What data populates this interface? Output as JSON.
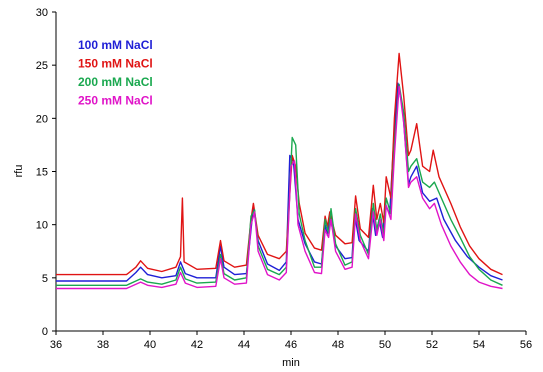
{
  "chart_data": {
    "type": "line",
    "title": "",
    "xlabel": "min",
    "ylabel": "rfu",
    "xlim": [
      36,
      56
    ],
    "ylim": [
      0,
      30
    ],
    "xticks": [
      36,
      38,
      40,
      42,
      44,
      46,
      48,
      50,
      52,
      54,
      56
    ],
    "yticks": [
      0,
      5,
      10,
      15,
      20,
      25,
      30
    ],
    "grid": false,
    "legend_position": "top-left",
    "series": [
      {
        "name": "100 mM NaCl",
        "color": "#1f1fd6",
        "points": [
          [
            36,
            4.7
          ],
          [
            39.0,
            4.7
          ],
          [
            39.4,
            5.5
          ],
          [
            39.6,
            6.0
          ],
          [
            39.9,
            5.3
          ],
          [
            40.5,
            5.0
          ],
          [
            41.1,
            5.2
          ],
          [
            41.3,
            6.5
          ],
          [
            41.5,
            5.4
          ],
          [
            42.0,
            5.0
          ],
          [
            42.8,
            5.0
          ],
          [
            43.0,
            8.0
          ],
          [
            43.15,
            6.0
          ],
          [
            43.6,
            5.3
          ],
          [
            44.1,
            5.4
          ],
          [
            44.3,
            9.5
          ],
          [
            44.4,
            11.8
          ],
          [
            44.6,
            8.5
          ],
          [
            45.0,
            6.3
          ],
          [
            45.5,
            5.7
          ],
          [
            45.8,
            6.5
          ],
          [
            45.95,
            16.5
          ],
          [
            46.1,
            16.0
          ],
          [
            46.3,
            10.5
          ],
          [
            46.6,
            8.2
          ],
          [
            47.0,
            6.5
          ],
          [
            47.3,
            6.3
          ],
          [
            47.45,
            10.0
          ],
          [
            47.55,
            9.0
          ],
          [
            47.65,
            11.0
          ],
          [
            47.9,
            8.0
          ],
          [
            48.3,
            6.8
          ],
          [
            48.6,
            6.9
          ],
          [
            48.7,
            11.0
          ],
          [
            48.9,
            8.5
          ],
          [
            49.3,
            7.5
          ],
          [
            49.45,
            11.5
          ],
          [
            49.6,
            9.0
          ],
          [
            49.75,
            10.5
          ],
          [
            49.9,
            8.8
          ],
          [
            50.0,
            12.0
          ],
          [
            50.2,
            11.0
          ],
          [
            50.35,
            17.0
          ],
          [
            50.55,
            23.3
          ],
          [
            50.75,
            21.0
          ],
          [
            51.0,
            13.8
          ],
          [
            51.1,
            14.5
          ],
          [
            51.35,
            15.5
          ],
          [
            51.6,
            13.0
          ],
          [
            51.9,
            12.2
          ],
          [
            52.2,
            12.5
          ],
          [
            52.5,
            10.5
          ],
          [
            53.0,
            8.5
          ],
          [
            53.5,
            7.0
          ],
          [
            54.0,
            6.0
          ],
          [
            54.5,
            5.2
          ],
          [
            55,
            4.8
          ]
        ]
      },
      {
        "name": "150 mM NaCl",
        "color": "#e01414",
        "points": [
          [
            36,
            5.3
          ],
          [
            39.0,
            5.3
          ],
          [
            39.4,
            6.0
          ],
          [
            39.6,
            6.6
          ],
          [
            39.9,
            5.9
          ],
          [
            40.5,
            5.6
          ],
          [
            41.1,
            6.0
          ],
          [
            41.3,
            7.0
          ],
          [
            41.38,
            12.5
          ],
          [
            41.45,
            6.5
          ],
          [
            42.0,
            5.8
          ],
          [
            42.8,
            5.9
          ],
          [
            43.0,
            8.5
          ],
          [
            43.15,
            6.6
          ],
          [
            43.6,
            6.0
          ],
          [
            44.1,
            6.2
          ],
          [
            44.3,
            10.5
          ],
          [
            44.4,
            12.0
          ],
          [
            44.6,
            9.0
          ],
          [
            45.0,
            7.2
          ],
          [
            45.5,
            6.8
          ],
          [
            45.8,
            7.5
          ],
          [
            46.05,
            16.5
          ],
          [
            46.2,
            15.5
          ],
          [
            46.35,
            12.0
          ],
          [
            46.6,
            9.2
          ],
          [
            47.0,
            7.8
          ],
          [
            47.3,
            7.6
          ],
          [
            47.45,
            10.8
          ],
          [
            47.55,
            9.8
          ],
          [
            47.65,
            11.2
          ],
          [
            47.9,
            9.0
          ],
          [
            48.3,
            8.2
          ],
          [
            48.6,
            8.3
          ],
          [
            48.75,
            12.7
          ],
          [
            48.95,
            9.6
          ],
          [
            49.3,
            8.8
          ],
          [
            49.5,
            13.7
          ],
          [
            49.65,
            10.5
          ],
          [
            49.8,
            12.0
          ],
          [
            49.95,
            10.2
          ],
          [
            50.05,
            14.5
          ],
          [
            50.25,
            12.5
          ],
          [
            50.4,
            20.0
          ],
          [
            50.6,
            26.1
          ],
          [
            50.8,
            22.0
          ],
          [
            51.0,
            16.5
          ],
          [
            51.1,
            17.0
          ],
          [
            51.35,
            19.5
          ],
          [
            51.6,
            15.5
          ],
          [
            51.9,
            15.0
          ],
          [
            52.05,
            17.0
          ],
          [
            52.3,
            14.5
          ],
          [
            52.8,
            12.0
          ],
          [
            53.2,
            9.8
          ],
          [
            53.6,
            8.0
          ],
          [
            54.0,
            6.8
          ],
          [
            54.5,
            5.8
          ],
          [
            55,
            5.3
          ]
        ]
      },
      {
        "name": "200 mM NaCl",
        "color": "#1aa84f",
        "points": [
          [
            36,
            4.3
          ],
          [
            39.0,
            4.3
          ],
          [
            39.4,
            4.7
          ],
          [
            39.6,
            4.9
          ],
          [
            39.9,
            4.6
          ],
          [
            40.5,
            4.4
          ],
          [
            41.1,
            4.8
          ],
          [
            41.3,
            6.0
          ],
          [
            41.5,
            4.9
          ],
          [
            42.0,
            4.5
          ],
          [
            42.8,
            4.6
          ],
          [
            43.0,
            7.2
          ],
          [
            43.15,
            5.4
          ],
          [
            43.6,
            4.8
          ],
          [
            44.1,
            5.0
          ],
          [
            44.3,
            10.8
          ],
          [
            44.45,
            11.4
          ],
          [
            44.6,
            8.0
          ],
          [
            45.0,
            5.8
          ],
          [
            45.5,
            5.3
          ],
          [
            45.8,
            6.0
          ],
          [
            46.05,
            18.2
          ],
          [
            46.2,
            17.5
          ],
          [
            46.35,
            11.0
          ],
          [
            46.6,
            8.5
          ],
          [
            47.0,
            6.0
          ],
          [
            47.3,
            6.0
          ],
          [
            47.45,
            10.5
          ],
          [
            47.6,
            9.2
          ],
          [
            47.7,
            11.5
          ],
          [
            47.9,
            8.2
          ],
          [
            48.3,
            6.2
          ],
          [
            48.6,
            6.5
          ],
          [
            48.75,
            11.5
          ],
          [
            48.95,
            9.0
          ],
          [
            49.3,
            7.2
          ],
          [
            49.5,
            12.0
          ],
          [
            49.65,
            9.5
          ],
          [
            49.8,
            11.0
          ],
          [
            49.95,
            9.0
          ],
          [
            50.05,
            12.5
          ],
          [
            50.25,
            11.0
          ],
          [
            50.4,
            17.5
          ],
          [
            50.6,
            23.2
          ],
          [
            50.8,
            20.5
          ],
          [
            51.0,
            15.0
          ],
          [
            51.1,
            15.5
          ],
          [
            51.35,
            16.2
          ],
          [
            51.6,
            14.0
          ],
          [
            51.9,
            13.5
          ],
          [
            52.1,
            14.0
          ],
          [
            52.4,
            12.5
          ],
          [
            52.8,
            10.5
          ],
          [
            53.2,
            8.8
          ],
          [
            53.6,
            7.0
          ],
          [
            54.0,
            5.8
          ],
          [
            54.5,
            4.8
          ],
          [
            55,
            4.3
          ]
        ]
      },
      {
        "name": "250 mM NaCl",
        "color": "#e014c8",
        "points": [
          [
            36,
            4.0
          ],
          [
            39.0,
            4.0
          ],
          [
            39.4,
            4.4
          ],
          [
            39.6,
            4.6
          ],
          [
            39.9,
            4.3
          ],
          [
            40.5,
            4.1
          ],
          [
            41.1,
            4.4
          ],
          [
            41.3,
            5.5
          ],
          [
            41.5,
            4.5
          ],
          [
            42.0,
            4.1
          ],
          [
            42.8,
            4.2
          ],
          [
            43.0,
            6.8
          ],
          [
            43.15,
            5.0
          ],
          [
            43.6,
            4.4
          ],
          [
            44.1,
            4.5
          ],
          [
            44.3,
            10.0
          ],
          [
            44.45,
            11.2
          ],
          [
            44.6,
            7.5
          ],
          [
            45.0,
            5.3
          ],
          [
            45.5,
            4.8
          ],
          [
            45.8,
            5.5
          ],
          [
            46.0,
            15.5
          ],
          [
            46.15,
            16.0
          ],
          [
            46.3,
            10.0
          ],
          [
            46.6,
            7.5
          ],
          [
            47.0,
            5.5
          ],
          [
            47.3,
            5.4
          ],
          [
            47.45,
            9.5
          ],
          [
            47.6,
            8.8
          ],
          [
            47.7,
            10.5
          ],
          [
            47.9,
            7.5
          ],
          [
            48.3,
            5.8
          ],
          [
            48.6,
            6.0
          ],
          [
            48.75,
            11.0
          ],
          [
            48.95,
            8.5
          ],
          [
            49.3,
            6.8
          ],
          [
            49.5,
            11.2
          ],
          [
            49.65,
            9.0
          ],
          [
            49.8,
            10.5
          ],
          [
            49.95,
            8.5
          ],
          [
            50.05,
            11.8
          ],
          [
            50.25,
            10.5
          ],
          [
            50.4,
            16.5
          ],
          [
            50.6,
            23.0
          ],
          [
            50.8,
            19.5
          ],
          [
            51.0,
            13.5
          ],
          [
            51.1,
            14.0
          ],
          [
            51.35,
            14.5
          ],
          [
            51.6,
            12.5
          ],
          [
            51.9,
            11.5
          ],
          [
            52.1,
            12.0
          ],
          [
            52.4,
            10.0
          ],
          [
            52.8,
            8.0
          ],
          [
            53.2,
            6.5
          ],
          [
            53.6,
            5.3
          ],
          [
            54.0,
            4.6
          ],
          [
            54.5,
            4.2
          ],
          [
            55,
            4.0
          ]
        ]
      }
    ]
  }
}
